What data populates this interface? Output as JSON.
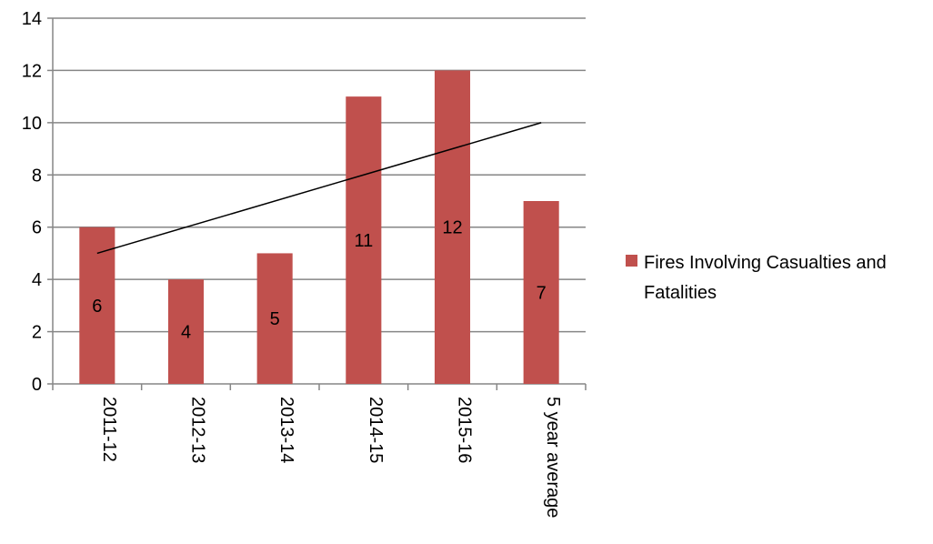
{
  "chart_data": {
    "type": "bar",
    "title": "",
    "xlabel": "",
    "ylabel": "",
    "categories": [
      "2011-12",
      "2012-13",
      "2013-14",
      "2014-15",
      "2015-16",
      "5 year average"
    ],
    "series": [
      {
        "name": "Fires Involving Casualties and Fatalities",
        "values": [
          6,
          4,
          5,
          11,
          12,
          7
        ],
        "color": "#c0504d",
        "data_labels": [
          "6",
          "4",
          "5",
          "11",
          "12",
          "7"
        ]
      }
    ],
    "trendline": {
      "type": "linear",
      "start": {
        "category": "2011-12",
        "value": 5
      },
      "end": {
        "category": "5 year average",
        "value": 10
      },
      "color": "#000000"
    },
    "ylim": [
      0,
      14
    ],
    "yticks": [
      "0",
      "2",
      "4",
      "6",
      "8",
      "10",
      "12",
      "14"
    ],
    "grid": true,
    "legend": {
      "position": "right",
      "lines": [
        "Fires Involving Casualties and",
        "Fatalities"
      ]
    },
    "gridline_color": "#868686",
    "axis_color": "#868686"
  }
}
